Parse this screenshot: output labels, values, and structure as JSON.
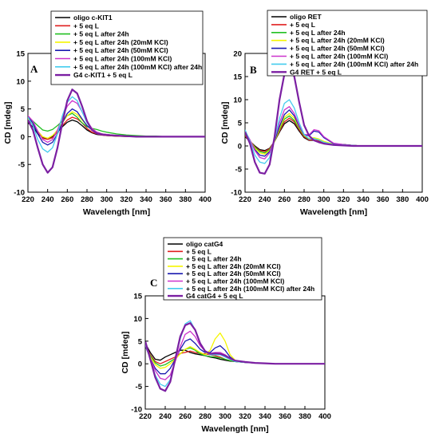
{
  "chart_data": [
    {
      "type": "line",
      "panel_label": "A",
      "xlabel": "Wavelength [nm]",
      "ylabel": "CD [mdeg]",
      "xlim": [
        220,
        400
      ],
      "ylim": [
        -10,
        15
      ],
      "xticks": [
        220,
        240,
        260,
        280,
        300,
        320,
        340,
        360,
        380,
        400
      ],
      "yticks": [
        -10,
        -5,
        0,
        5,
        10,
        15
      ],
      "grid": false,
      "legend_position": "top-left, above plot",
      "x": [
        220,
        225,
        230,
        235,
        240,
        245,
        250,
        255,
        260,
        265,
        270,
        275,
        280,
        285,
        290,
        295,
        300,
        310,
        320,
        330,
        340,
        350,
        360,
        370,
        380,
        390,
        400
      ],
      "series": [
        {
          "name": "oligo c-KIT1",
          "color": "#000000",
          "values": [
            2.5,
            1.8,
            0.5,
            -0.2,
            -0.3,
            0.0,
            0.8,
            1.8,
            2.6,
            3.0,
            2.7,
            2.0,
            1.2,
            0.7,
            0.4,
            0.3,
            0.2,
            0.1,
            0.05,
            0.0,
            0.0,
            0.0,
            0.0,
            0.0,
            0.0,
            0.0,
            0.0
          ]
        },
        {
          "name": "+ 5 eq L",
          "color": "#e02020",
          "values": [
            3.0,
            2.2,
            0.8,
            -0.3,
            -0.5,
            -0.2,
            0.8,
            2.0,
            3.0,
            3.5,
            3.2,
            2.5,
            1.5,
            0.8,
            0.5,
            0.3,
            0.2,
            0.1,
            0.05,
            0.0,
            0.0,
            0.0,
            0.0,
            0.0,
            0.0,
            0.0,
            0.0
          ]
        },
        {
          "name": "+ 5 eq L after 24h",
          "color": "#22c022",
          "values": [
            3.5,
            2.8,
            2.0,
            1.2,
            1.0,
            1.3,
            2.0,
            2.8,
            3.8,
            4.2,
            3.5,
            2.5,
            1.8,
            1.5,
            1.3,
            1.0,
            0.8,
            0.5,
            0.3,
            0.2,
            0.1,
            0.1,
            0.0,
            0.0,
            0.0,
            0.0,
            0.0
          ]
        },
        {
          "name": "+ 5 eq L after 24h (20mM KCl)",
          "color": "#f5f500",
          "values": [
            3.2,
            2.5,
            1.0,
            0.0,
            -0.3,
            0.2,
            1.2,
            2.5,
            3.8,
            4.5,
            4.0,
            3.0,
            2.0,
            1.2,
            0.8,
            0.5,
            0.4,
            0.2,
            0.1,
            0.0,
            0.0,
            0.0,
            0.0,
            0.0,
            0.0,
            0.0,
            0.0
          ]
        },
        {
          "name": "+ 5 eq L after 24h (50mM KCl)",
          "color": "#1a1ab0",
          "values": [
            3.5,
            2.5,
            0.5,
            -1.0,
            -1.5,
            -1.0,
            0.5,
            2.5,
            4.2,
            5.0,
            4.5,
            3.2,
            2.0,
            1.2,
            0.8,
            0.5,
            0.4,
            0.2,
            0.1,
            0.0,
            0.0,
            0.0,
            0.0,
            0.0,
            0.0,
            0.0,
            0.0
          ]
        },
        {
          "name": "+ 5 eq L after 24h (100mM KCl)",
          "color": "#cc33cc",
          "values": [
            3.8,
            2.8,
            1.0,
            -0.5,
            -1.0,
            -0.5,
            1.2,
            3.5,
            5.5,
            6.5,
            6.0,
            4.5,
            2.8,
            1.5,
            0.8,
            0.5,
            0.4,
            0.2,
            0.1,
            0.0,
            0.0,
            0.0,
            0.0,
            0.0,
            0.0,
            0.0,
            0.0
          ]
        },
        {
          "name": "+ 5 eq L after 24h (100mM KCl) after 24h",
          "color": "#44ccee",
          "values": [
            3.5,
            2.0,
            -0.5,
            -2.2,
            -2.8,
            -2.0,
            0.5,
            3.8,
            6.2,
            7.2,
            6.5,
            4.5,
            2.5,
            1.2,
            0.6,
            0.4,
            0.3,
            0.2,
            0.1,
            0.0,
            0.0,
            0.0,
            0.0,
            0.0,
            0.0,
            0.0,
            0.0
          ]
        },
        {
          "name": "G4 c-KIT1 + 5 eq L",
          "color": "#7b1fa2",
          "values": [
            3.0,
            1.2,
            -2.0,
            -5.0,
            -6.5,
            -5.5,
            -2.0,
            2.5,
            6.5,
            8.5,
            7.8,
            5.5,
            2.8,
            1.2,
            0.6,
            0.4,
            0.3,
            0.2,
            0.1,
            0.0,
            0.0,
            0.0,
            0.0,
            0.0,
            0.0,
            0.0,
            0.0
          ]
        }
      ]
    },
    {
      "type": "line",
      "panel_label": "B",
      "xlabel": "Wavelength [nm]",
      "ylabel": "CD [mdeg]",
      "xlim": [
        220,
        400
      ],
      "ylim": [
        -10,
        20
      ],
      "xticks": [
        220,
        240,
        260,
        280,
        300,
        320,
        340,
        360,
        380,
        400
      ],
      "yticks": [
        -10,
        -5,
        0,
        5,
        10,
        15,
        20
      ],
      "grid": false,
      "legend_position": "top-left, above plot",
      "x": [
        220,
        225,
        230,
        235,
        240,
        245,
        250,
        255,
        260,
        265,
        270,
        275,
        280,
        285,
        290,
        295,
        300,
        310,
        320,
        330,
        340,
        350,
        360,
        370,
        380,
        390,
        400
      ],
      "series": [
        {
          "name": "oligo RET",
          "color": "#000000",
          "values": [
            2.0,
            1.0,
            0.0,
            -0.8,
            -1.0,
            -0.5,
            1.0,
            3.0,
            4.8,
            5.5,
            4.8,
            3.2,
            1.8,
            1.2,
            1.2,
            1.0,
            0.7,
            0.3,
            0.3,
            0.1,
            0.0,
            0.0,
            0.0,
            0.0,
            0.0,
            0.0,
            0.0
          ]
        },
        {
          "name": "+ 5 eq L",
          "color": "#e02020",
          "values": [
            2.2,
            1.0,
            -0.2,
            -1.0,
            -1.2,
            -0.6,
            1.0,
            3.2,
            5.2,
            6.0,
            5.2,
            3.5,
            2.0,
            1.3,
            1.3,
            1.1,
            0.8,
            0.3,
            0.3,
            0.1,
            0.0,
            0.0,
            0.0,
            0.0,
            0.0,
            0.0,
            0.0
          ]
        },
        {
          "name": "+ 5 eq L after 24h",
          "color": "#22c022",
          "values": [
            2.5,
            1.0,
            -0.3,
            -1.2,
            -1.5,
            -0.8,
            1.0,
            3.5,
            5.8,
            6.5,
            5.5,
            3.8,
            2.2,
            1.5,
            1.6,
            1.3,
            0.9,
            0.4,
            0.3,
            0.1,
            0.0,
            0.0,
            0.0,
            0.0,
            0.0,
            0.0,
            0.0
          ]
        },
        {
          "name": "+ 5 eq L after 24h (20mM KCl)",
          "color": "#f5f500",
          "values": [
            2.8,
            1.2,
            -0.5,
            -1.5,
            -1.8,
            -1.0,
            1.0,
            3.8,
            6.2,
            7.0,
            6.0,
            4.0,
            2.3,
            1.6,
            1.8,
            1.5,
            1.0,
            0.4,
            0.3,
            0.1,
            0.0,
            0.0,
            0.0,
            0.0,
            0.0,
            0.0,
            0.0
          ]
        },
        {
          "name": "+ 5 eq L after 24h (50mM KCl)",
          "color": "#1a1ab0",
          "values": [
            3.0,
            1.2,
            -0.8,
            -2.0,
            -2.2,
            -1.2,
            1.2,
            4.2,
            6.8,
            7.8,
            6.5,
            4.2,
            2.4,
            2.2,
            3.2,
            3.0,
            1.8,
            0.5,
            0.3,
            0.1,
            0.0,
            0.0,
            0.0,
            0.0,
            0.0,
            0.0,
            0.0
          ]
        },
        {
          "name": "+ 5 eq L after 24h (100mM KCl)",
          "color": "#cc33cc",
          "values": [
            3.2,
            1.3,
            -1.0,
            -2.5,
            -2.8,
            -1.5,
            1.5,
            5.0,
            7.8,
            8.5,
            7.0,
            4.5,
            2.5,
            2.4,
            3.5,
            3.3,
            2.0,
            0.6,
            0.3,
            0.1,
            0.0,
            0.0,
            0.0,
            0.0,
            0.0,
            0.0,
            0.0
          ]
        },
        {
          "name": "+ 5 eq L after 24h (100mM KCl) after 24h",
          "color": "#44ccee",
          "values": [
            3.5,
            1.0,
            -2.0,
            -3.5,
            -3.8,
            -2.5,
            1.5,
            6.0,
            9.2,
            10.0,
            8.2,
            5.0,
            2.5,
            1.5,
            1.6,
            1.3,
            0.8,
            0.3,
            0.2,
            0.1,
            0.0,
            0.0,
            0.0,
            0.0,
            0.0,
            0.0,
            0.0
          ]
        },
        {
          "name": "G4 RET + 5 eq L",
          "color": "#7b1fa2",
          "values": [
            3.0,
            0.5,
            -3.5,
            -5.8,
            -6.0,
            -4.0,
            2.0,
            10.0,
            15.5,
            17.2,
            15.0,
            9.5,
            4.5,
            2.2,
            1.2,
            0.8,
            0.5,
            0.2,
            0.1,
            0.0,
            0.0,
            0.0,
            0.0,
            0.0,
            0.0,
            0.0,
            0.0
          ]
        }
      ]
    },
    {
      "type": "line",
      "panel_label": "C",
      "xlabel": "Wavelength [nm]",
      "ylabel": "CD [mdeg]",
      "xlim": [
        220,
        400
      ],
      "ylim": [
        -10,
        15
      ],
      "xticks": [
        220,
        240,
        260,
        280,
        300,
        320,
        340,
        360,
        380,
        400
      ],
      "yticks": [
        -10,
        -5,
        0,
        5,
        10,
        15
      ],
      "grid": false,
      "legend_position": "top-left, above plot",
      "x": [
        220,
        225,
        230,
        235,
        240,
        245,
        250,
        255,
        260,
        265,
        270,
        275,
        280,
        285,
        290,
        295,
        300,
        305,
        310,
        320,
        330,
        340,
        350,
        360,
        370,
        380,
        390,
        400
      ],
      "series": [
        {
          "name": "oligo catG4",
          "color": "#000000",
          "values": [
            4.5,
            2.5,
            1.0,
            0.8,
            1.5,
            2.0,
            2.5,
            3.0,
            3.0,
            2.5,
            2.2,
            2.0,
            1.8,
            1.5,
            1.3,
            1.0,
            0.8,
            0.6,
            0.5,
            0.3,
            0.2,
            0.1,
            0.0,
            0.0,
            0.0,
            0.0,
            0.0,
            0.0
          ]
        },
        {
          "name": "+ 5 eq L",
          "color": "#e02020",
          "values": [
            4.2,
            2.0,
            0.5,
            0.0,
            0.5,
            1.0,
            1.5,
            2.3,
            2.5,
            2.8,
            2.5,
            2.3,
            2.2,
            2.0,
            1.8,
            1.5,
            1.0,
            0.7,
            0.5,
            0.3,
            0.2,
            0.1,
            0.0,
            0.0,
            0.0,
            0.0,
            0.0,
            0.0
          ]
        },
        {
          "name": "+ 5 eq L after 24h",
          "color": "#22c022",
          "values": [
            4.0,
            1.8,
            0.2,
            -0.5,
            -0.2,
            0.5,
            1.2,
            2.2,
            3.2,
            3.5,
            3.0,
            2.2,
            1.8,
            1.6,
            1.5,
            1.3,
            1.0,
            0.7,
            0.5,
            0.3,
            0.2,
            0.1,
            0.0,
            0.0,
            0.0,
            0.0,
            0.0,
            0.0
          ]
        },
        {
          "name": "+ 5 eq L after 24h (20mM KCl)",
          "color": "#f5f500",
          "values": [
            4.0,
            1.5,
            -0.2,
            -1.0,
            -0.8,
            0.0,
            1.0,
            2.2,
            3.2,
            3.8,
            3.2,
            2.5,
            2.0,
            3.0,
            5.5,
            6.8,
            5.0,
            2.0,
            0.8,
            0.3,
            0.2,
            0.1,
            0.0,
            0.0,
            0.0,
            0.0,
            0.0,
            0.0
          ]
        },
        {
          "name": "+ 5 eq L after 24h (50mM KCl)",
          "color": "#1a1ab0",
          "values": [
            4.0,
            1.2,
            -1.0,
            -2.2,
            -2.2,
            -1.0,
            1.0,
            3.2,
            5.0,
            5.5,
            4.5,
            3.2,
            2.5,
            2.5,
            3.5,
            4.0,
            3.0,
            1.5,
            0.7,
            0.3,
            0.2,
            0.1,
            0.0,
            0.0,
            0.0,
            0.0,
            0.0,
            0.0
          ]
        },
        {
          "name": "+ 5 eq L after 24h (100mM KCl)",
          "color": "#cc33cc",
          "values": [
            4.2,
            1.2,
            -1.5,
            -3.2,
            -3.5,
            -2.5,
            0.5,
            3.8,
            6.5,
            7.2,
            6.0,
            4.0,
            2.8,
            2.3,
            2.5,
            2.5,
            2.0,
            1.2,
            0.6,
            0.3,
            0.2,
            0.1,
            0.0,
            0.0,
            0.0,
            0.0,
            0.0,
            0.0
          ]
        },
        {
          "name": "+ 5 eq L after 24h (100mM KCl) after 24h",
          "color": "#44ccee",
          "values": [
            4.5,
            1.0,
            -2.5,
            -4.5,
            -5.0,
            -3.5,
            1.0,
            5.5,
            8.8,
            9.5,
            7.5,
            4.5,
            2.8,
            2.0,
            2.0,
            2.0,
            1.5,
            1.0,
            0.5,
            0.3,
            0.2,
            0.1,
            0.0,
            0.0,
            0.0,
            0.0,
            0.0,
            0.0
          ]
        },
        {
          "name": "G4 catG4 + 5 eq L",
          "color": "#7b1fa2",
          "values": [
            5.0,
            1.0,
            -3.0,
            -5.5,
            -6.0,
            -4.0,
            1.0,
            6.0,
            8.5,
            9.0,
            7.5,
            4.5,
            2.8,
            2.2,
            2.3,
            2.2,
            1.8,
            1.2,
            0.7,
            0.4,
            0.2,
            0.1,
            0.0,
            0.0,
            0.0,
            0.0,
            0.0,
            0.0
          ]
        }
      ]
    }
  ]
}
